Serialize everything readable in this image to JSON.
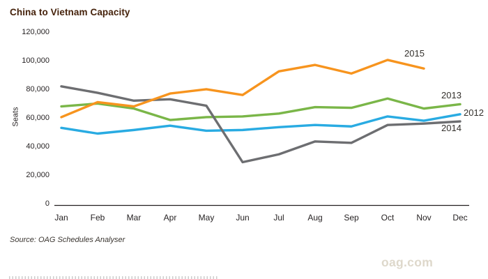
{
  "page": {
    "title": "China to Vietnam Capacity",
    "source_note": "Source: OAG Schedules Analyser",
    "watermark": "oag.com"
  },
  "chart_data": {
    "type": "line",
    "title": "China to Vietnam Capacity",
    "xlabel": "",
    "ylabel": "Seats",
    "categories": [
      "Jan",
      "Feb",
      "Mar",
      "Apr",
      "May",
      "Jun",
      "Jul",
      "Aug",
      "Sep",
      "Oct",
      "Nov",
      "Dec"
    ],
    "ylim": [
      0,
      120000
    ],
    "ytick_values": [
      0,
      20000,
      40000,
      60000,
      80000,
      100000,
      120000
    ],
    "ytick_labels": [
      "0",
      "20,000",
      "40,000",
      "60,000",
      "80,000",
      "100,000",
      "120,000"
    ],
    "grid": false,
    "legend_position": "line-end-labels",
    "series": [
      {
        "name": "2012",
        "color": "#29ABE2",
        "values": [
          54000,
          50000,
          52500,
          55500,
          52000,
          52500,
          54500,
          56000,
          55000,
          62000,
          59000,
          63500
        ]
      },
      {
        "name": "2013",
        "color": "#7AB648",
        "values": [
          69000,
          71000,
          67500,
          59500,
          61500,
          62000,
          64000,
          68500,
          68000,
          74500,
          67500,
          70500
        ]
      },
      {
        "name": "2014",
        "color": "#6D6E71",
        "values": [
          83000,
          78500,
          73000,
          74000,
          69500,
          30000,
          35500,
          44500,
          43500,
          56000,
          57000,
          58500
        ]
      },
      {
        "name": "2015",
        "color": "#F7941E",
        "values": [
          61500,
          72000,
          69000,
          78000,
          81000,
          77000,
          93500,
          98000,
          92000,
          101500,
          95500
        ]
      }
    ]
  },
  "colors": {
    "title": "#45220B",
    "axis_text": "#231F20",
    "axis_line": "#231F20",
    "watermark": "#DED8CB"
  }
}
